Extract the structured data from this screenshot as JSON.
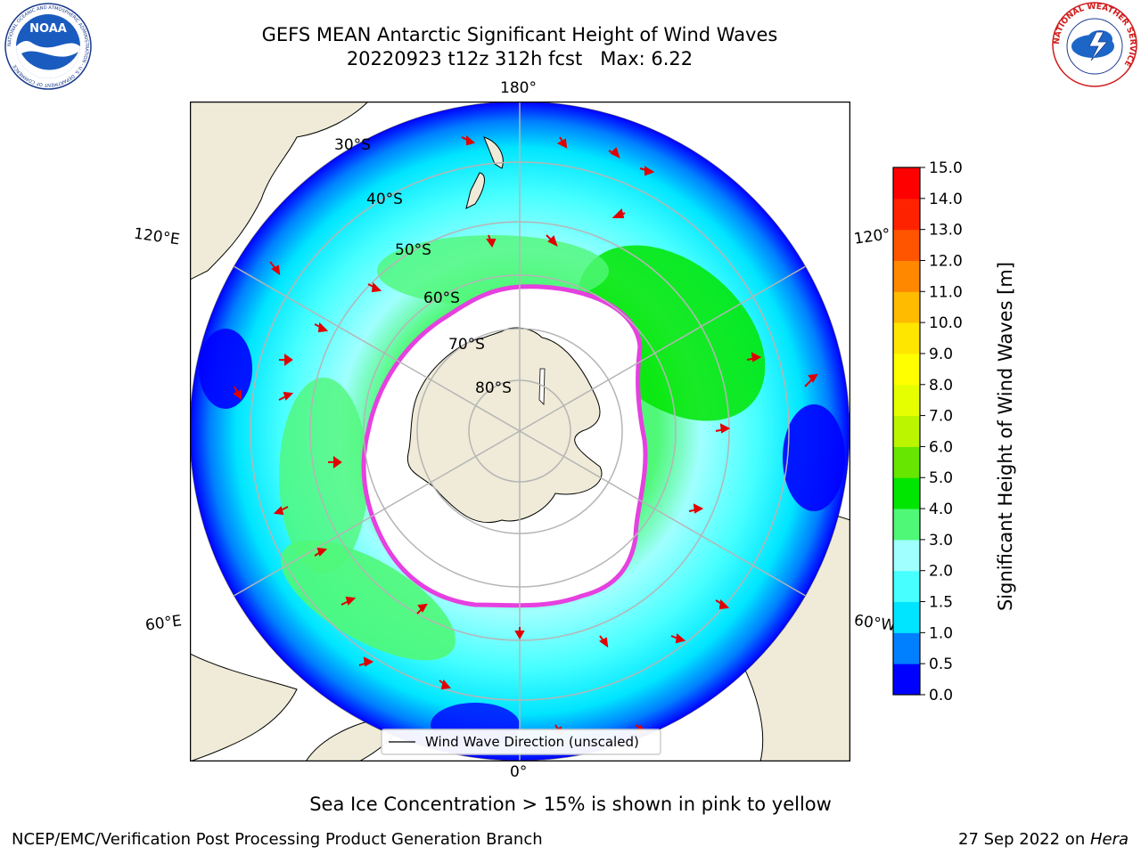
{
  "title": {
    "line1": "GEFS MEAN Antarctic Significant Height of Wind Waves",
    "line2": "20220923 t12z 312h fcst   Max: 6.22"
  },
  "map": {
    "lon_labels": [
      "180°",
      "120°E",
      "120°",
      "60°E",
      "60°W",
      "0°"
    ],
    "lat_labels": [
      "30°S",
      "40°S",
      "50°S",
      "60°S",
      "70°S",
      "80°S"
    ],
    "legend": "Wind Wave Direction (unscaled)",
    "land_color": "#efebd8",
    "ice_color": "#ffffff"
  },
  "colorbar": {
    "label": "Significant Height of Wind Waves [m]",
    "ticks": [
      "0.0",
      "0.5",
      "1.0",
      "1.5",
      "2.0",
      "3.0",
      "4.0",
      "5.0",
      "6.0",
      "7.0",
      "8.0",
      "9.0",
      "10.0",
      "11.0",
      "12.0",
      "13.0",
      "14.0",
      "15.0"
    ],
    "colors": [
      "#0000ff",
      "#0080ff",
      "#00e5ff",
      "#47ffff",
      "#a0ffff",
      "#50f878",
      "#00e600",
      "#66e600",
      "#bbf500",
      "#e6ff00",
      "#ffff00",
      "#ffe600",
      "#ffbb00",
      "#ff8800",
      "#ff5500",
      "#ff2200",
      "#ff0000"
    ]
  },
  "subtitle": "Sea Ice Concentration > 15% is shown in pink to yellow",
  "footer": {
    "left": "NCEP/EMC/Verification Post Processing Product Generation Branch",
    "right_prefix": "27 Sep 2022 on ",
    "right_host": "Hera"
  },
  "logos": {
    "noaa_text": "NOAA",
    "noaa_ring": "NATIONAL OCEANIC AND ATMOSPHERIC ADMINISTRATION · U.S. DEPARTMENT OF COMMERCE",
    "nws_ring": "NATIONAL WEATHER SERVICE"
  }
}
